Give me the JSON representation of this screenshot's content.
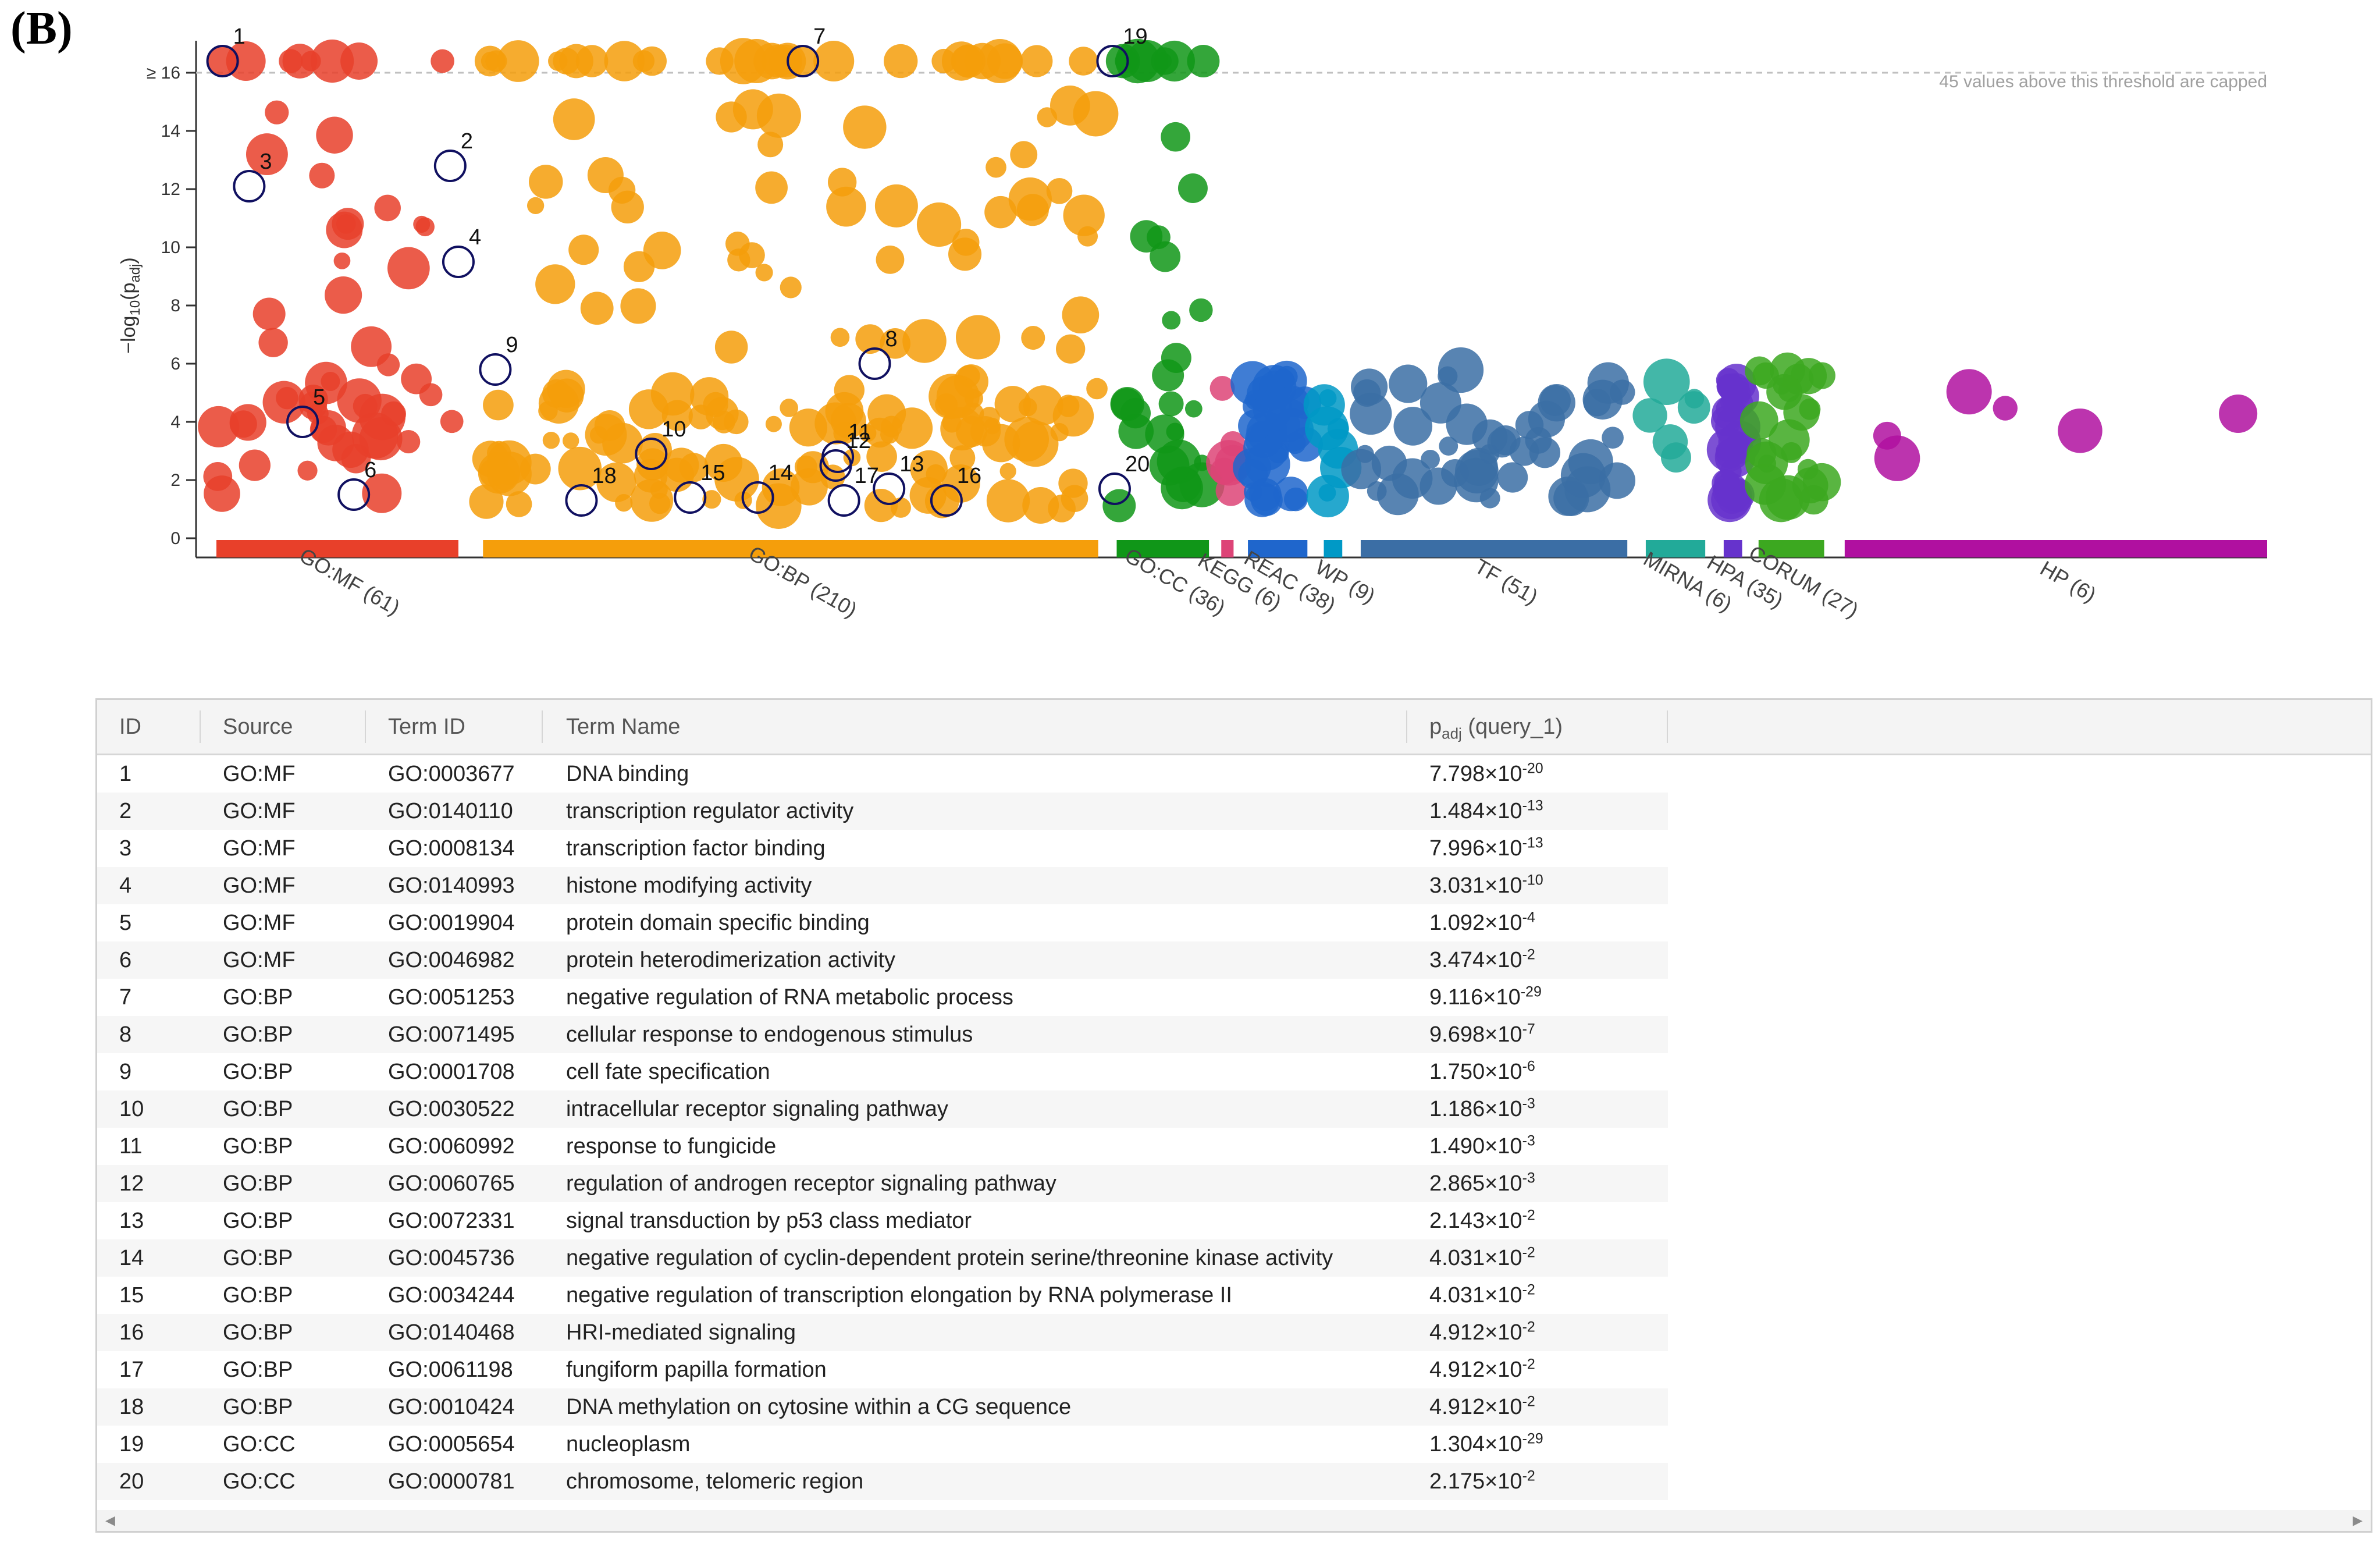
{
  "panel_label": "(B)",
  "chart_data": {
    "type": "scatter",
    "ylabel": "−log₁₀(pₐdj)",
    "ylabel_main": "−log",
    "ylabel_sub": "10",
    "ylabel_p": "(p",
    "ylabel_psub": "adj",
    "ylabel_close": ")",
    "ylim": [
      0,
      17
    ],
    "y_ticks": [
      0,
      2,
      4,
      6,
      8,
      10,
      12,
      14
    ],
    "y_cap_label": "≥ 16",
    "y_cap_value": 16,
    "cap_note": "45 values above this threshold are capped",
    "sources": [
      {
        "name": "GO:MF (61)",
        "color": "#e8402a",
        "start": 0,
        "end": 0.118
      },
      {
        "name": "GO:BP (210)",
        "color": "#f59e0b",
        "start": 0.13,
        "end": 0.43
      },
      {
        "name": "GO:CC (36)",
        "color": "#109618",
        "start": 0.439,
        "end": 0.484
      },
      {
        "name": "KEGG (6)",
        "color": "#dd4477",
        "start": 0.49,
        "end": 0.496
      },
      {
        "name": "REAC (38)",
        "color": "#1f66cc",
        "start": 0.503,
        "end": 0.532
      },
      {
        "name": "WP (9)",
        "color": "#0099c6",
        "start": 0.54,
        "end": 0.549
      },
      {
        "name": "TF (51)",
        "color": "#3b6ea5",
        "start": 0.558,
        "end": 0.688
      },
      {
        "name": "MIRNA (6)",
        "color": "#22aa99",
        "start": 0.697,
        "end": 0.726
      },
      {
        "name": "HPA (35)",
        "color": "#6633cc",
        "start": 0.735,
        "end": 0.744
      },
      {
        "name": "CORUM (27)",
        "color": "#3ca820",
        "start": 0.752,
        "end": 0.784
      },
      {
        "name": "HP (6)",
        "color": "#b010a0",
        "start": 0.794,
        "end": 1.0
      }
    ],
    "highlighted": [
      {
        "id": "1",
        "x": 0.003,
        "y": 16.4
      },
      {
        "id": "2",
        "x": 0.114,
        "y": 12.8
      },
      {
        "id": "3",
        "x": 0.016,
        "y": 12.1
      },
      {
        "id": "4",
        "x": 0.118,
        "y": 9.5
      },
      {
        "id": "5",
        "x": 0.042,
        "y": 4.0
      },
      {
        "id": "6",
        "x": 0.067,
        "y": 1.5
      },
      {
        "id": "7",
        "x": 0.286,
        "y": 16.4
      },
      {
        "id": "8",
        "x": 0.321,
        "y": 6.0
      },
      {
        "id": "9",
        "x": 0.136,
        "y": 5.8
      },
      {
        "id": "10",
        "x": 0.212,
        "y": 2.9
      },
      {
        "id": "11",
        "x": 0.303,
        "y": 2.8
      },
      {
        "id": "12",
        "x": 0.302,
        "y": 2.5
      },
      {
        "id": "13",
        "x": 0.328,
        "y": 1.7
      },
      {
        "id": "14",
        "x": 0.264,
        "y": 1.4
      },
      {
        "id": "15",
        "x": 0.231,
        "y": 1.4
      },
      {
        "id": "16",
        "x": 0.356,
        "y": 1.3
      },
      {
        "id": "17",
        "x": 0.306,
        "y": 1.3
      },
      {
        "id": "18",
        "x": 0.178,
        "y": 1.3
      },
      {
        "id": "19",
        "x": 0.437,
        "y": 16.4
      },
      {
        "id": "20",
        "x": 0.438,
        "y": 1.7
      }
    ]
  },
  "table": {
    "headers": {
      "id": "ID",
      "source": "Source",
      "term_id": "Term ID",
      "term_name": "Term Name",
      "padj": "p",
      "padj_sub": "adj",
      "padj_suffix": " (query_1)"
    },
    "rows": [
      {
        "id": "1",
        "source": "GO:MF",
        "term_id": "GO:0003677",
        "term_name": "DNA binding",
        "mant": "7.798×10",
        "exp": "-20"
      },
      {
        "id": "2",
        "source": "GO:MF",
        "term_id": "GO:0140110",
        "term_name": "transcription regulator activity",
        "mant": "1.484×10",
        "exp": "-13"
      },
      {
        "id": "3",
        "source": "GO:MF",
        "term_id": "GO:0008134",
        "term_name": "transcription factor binding",
        "mant": "7.996×10",
        "exp": "-13"
      },
      {
        "id": "4",
        "source": "GO:MF",
        "term_id": "GO:0140993",
        "term_name": "histone modifying activity",
        "mant": "3.031×10",
        "exp": "-10"
      },
      {
        "id": "5",
        "source": "GO:MF",
        "term_id": "GO:0019904",
        "term_name": "protein domain specific binding",
        "mant": "1.092×10",
        "exp": "-4"
      },
      {
        "id": "6",
        "source": "GO:MF",
        "term_id": "GO:0046982",
        "term_name": "protein heterodimerization activity",
        "mant": "3.474×10",
        "exp": "-2"
      },
      {
        "id": "7",
        "source": "GO:BP",
        "term_id": "GO:0051253",
        "term_name": "negative regulation of RNA metabolic process",
        "mant": "9.116×10",
        "exp": "-29"
      },
      {
        "id": "8",
        "source": "GO:BP",
        "term_id": "GO:0071495",
        "term_name": "cellular response to endogenous stimulus",
        "mant": "9.698×10",
        "exp": "-7"
      },
      {
        "id": "9",
        "source": "GO:BP",
        "term_id": "GO:0001708",
        "term_name": "cell fate specification",
        "mant": "1.750×10",
        "exp": "-6"
      },
      {
        "id": "10",
        "source": "GO:BP",
        "term_id": "GO:0030522",
        "term_name": "intracellular receptor signaling pathway",
        "mant": "1.186×10",
        "exp": "-3"
      },
      {
        "id": "11",
        "source": "GO:BP",
        "term_id": "GO:0060992",
        "term_name": "response to fungicide",
        "mant": "1.490×10",
        "exp": "-3"
      },
      {
        "id": "12",
        "source": "GO:BP",
        "term_id": "GO:0060765",
        "term_name": "regulation of androgen receptor signaling pathway",
        "mant": "2.865×10",
        "exp": "-3"
      },
      {
        "id": "13",
        "source": "GO:BP",
        "term_id": "GO:0072331",
        "term_name": "signal transduction by p53 class mediator",
        "mant": "2.143×10",
        "exp": "-2"
      },
      {
        "id": "14",
        "source": "GO:BP",
        "term_id": "GO:0045736",
        "term_name": "negative regulation of cyclin-dependent protein serine/threonine kinase activity",
        "mant": "4.031×10",
        "exp": "-2"
      },
      {
        "id": "15",
        "source": "GO:BP",
        "term_id": "GO:0034244",
        "term_name": "negative regulation of transcription elongation by RNA polymerase II",
        "mant": "4.031×10",
        "exp": "-2"
      },
      {
        "id": "16",
        "source": "GO:BP",
        "term_id": "GO:0140468",
        "term_name": "HRI-mediated signaling",
        "mant": "4.912×10",
        "exp": "-2"
      },
      {
        "id": "17",
        "source": "GO:BP",
        "term_id": "GO:0061198",
        "term_name": "fungiform papilla formation",
        "mant": "4.912×10",
        "exp": "-2"
      },
      {
        "id": "18",
        "source": "GO:BP",
        "term_id": "GO:0010424",
        "term_name": "DNA methylation on cytosine within a CG sequence",
        "mant": "4.912×10",
        "exp": "-2"
      },
      {
        "id": "19",
        "source": "GO:CC",
        "term_id": "GO:0005654",
        "term_name": "nucleoplasm",
        "mant": "1.304×10",
        "exp": "-29"
      },
      {
        "id": "20",
        "source": "GO:CC",
        "term_id": "GO:0000781",
        "term_name": "chromosome, telomeric region",
        "mant": "2.175×10",
        "exp": "-2"
      }
    ]
  }
}
